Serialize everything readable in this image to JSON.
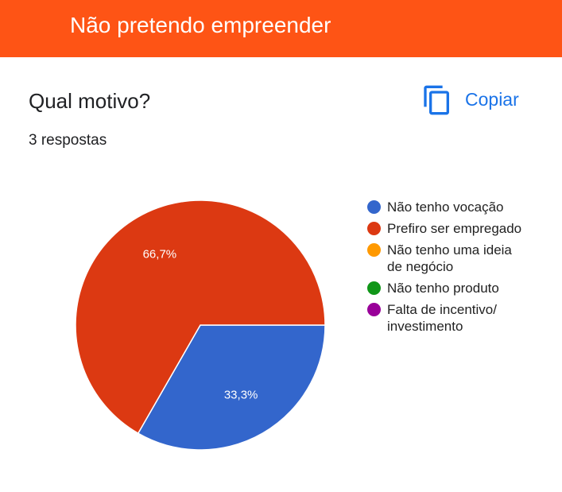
{
  "header": {
    "title": "Não pretendo empreender"
  },
  "question": "Qual motivo?",
  "responses": "3 respostas",
  "copy_button": "Copiar",
  "chart_data": {
    "type": "pie",
    "categories": [
      "Não tenho vocação",
      "Prefiro ser empregado",
      "Não tenho uma ideia\nde negócio",
      "Não tenho produto",
      "Falta de incentivo/\ninvestimento"
    ],
    "values": [
      33.3,
      66.7,
      0,
      0,
      0
    ],
    "value_labels": [
      "33,3%",
      "66,7%",
      null,
      null,
      null
    ],
    "colors": [
      "#3366cc",
      "#dc3912",
      "#ff9900",
      "#109618",
      "#990099"
    ],
    "legend": "right"
  }
}
